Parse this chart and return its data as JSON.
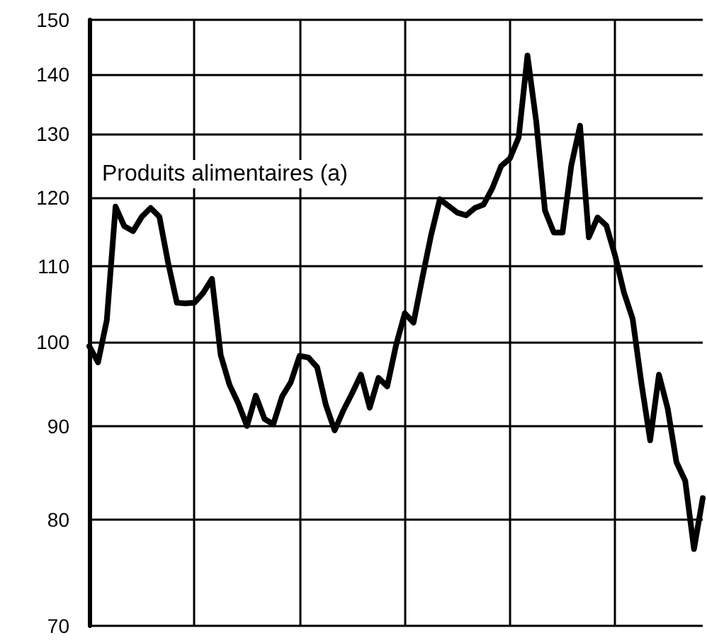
{
  "chart_data": {
    "type": "line",
    "annotations": [
      "Produits alimentaires (a)"
    ],
    "categories": [
      null,
      null,
      null,
      null,
      null,
      null,
      null,
      null,
      null,
      null,
      null,
      null,
      null,
      null,
      null,
      null,
      null,
      null,
      null,
      null,
      null,
      null,
      null,
      null,
      null,
      null,
      null,
      null,
      null,
      null,
      null,
      null,
      null,
      null,
      null,
      null,
      null,
      null,
      null,
      null,
      null,
      null,
      null,
      null,
      null,
      null,
      null,
      null,
      null,
      null,
      null,
      null,
      null,
      null,
      null,
      null,
      null,
      null,
      null,
      null,
      null,
      null,
      null,
      null,
      null,
      null,
      null,
      null,
      null,
      null,
      null
    ],
    "series": [
      {
        "color": "#000000",
        "values": [
          99.5,
          97.5,
          102.8,
          118.6,
          115.7,
          115.0,
          117.1,
          118.4,
          117.1,
          110.5,
          105.1,
          105.0,
          105.1,
          106.4,
          108.3,
          98.4,
          94.8,
          92.6,
          90.0,
          93.5,
          90.8,
          90.2,
          93.4,
          95.1,
          98.3,
          98.1,
          96.9,
          92.4,
          89.5,
          91.8,
          93.8,
          96.0,
          92.1,
          95.6,
          94.6,
          99.6,
          103.7,
          102.5,
          108.4,
          114.4,
          119.7,
          118.7,
          117.7,
          117.3,
          118.4,
          118.9,
          121.4,
          124.8,
          126.0,
          129.4,
          143.4,
          132.0,
          118.0,
          114.8,
          114.8,
          124.9,
          131.3,
          114.1,
          117.0,
          115.8,
          111.5,
          106.5,
          103.0,
          95.0,
          88.4,
          96.0,
          92.0,
          86.0,
          84.0,
          77.1,
          82.2
        ]
      }
    ],
    "ylim": [
      70,
      150
    ],
    "yticks": [
      70,
      80,
      90,
      100,
      110,
      120,
      130,
      140,
      150
    ],
    "log": true,
    "grid": true,
    "tick_labels": "y",
    "line_style": "solid"
  }
}
